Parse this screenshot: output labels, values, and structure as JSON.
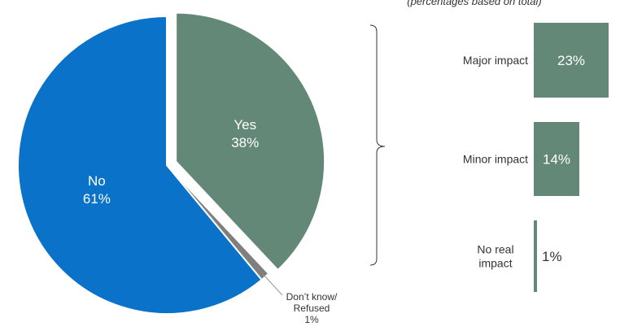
{
  "chart_data": [
    {
      "type": "pie",
      "slices": [
        {
          "label": "No",
          "value": 61,
          "value_label": "61%",
          "color": "#0a72c8"
        },
        {
          "label": "Yes",
          "value": 38,
          "value_label": "38%",
          "color": "#648878",
          "exploded": true
        },
        {
          "label_lines": [
            "Don’t know/",
            "Refused"
          ],
          "value": 1,
          "value_label": "1%",
          "color": "#7f7f7f"
        }
      ]
    },
    {
      "type": "bar",
      "subtitle": "(percentages based on total)",
      "color": "#648878",
      "categories": [
        [
          "Major impact"
        ],
        [
          "Minor impact"
        ],
        [
          "No real",
          "impact"
        ]
      ],
      "values": [
        23,
        14,
        1
      ],
      "value_labels": [
        "23%",
        "14%",
        "1%"
      ]
    }
  ]
}
